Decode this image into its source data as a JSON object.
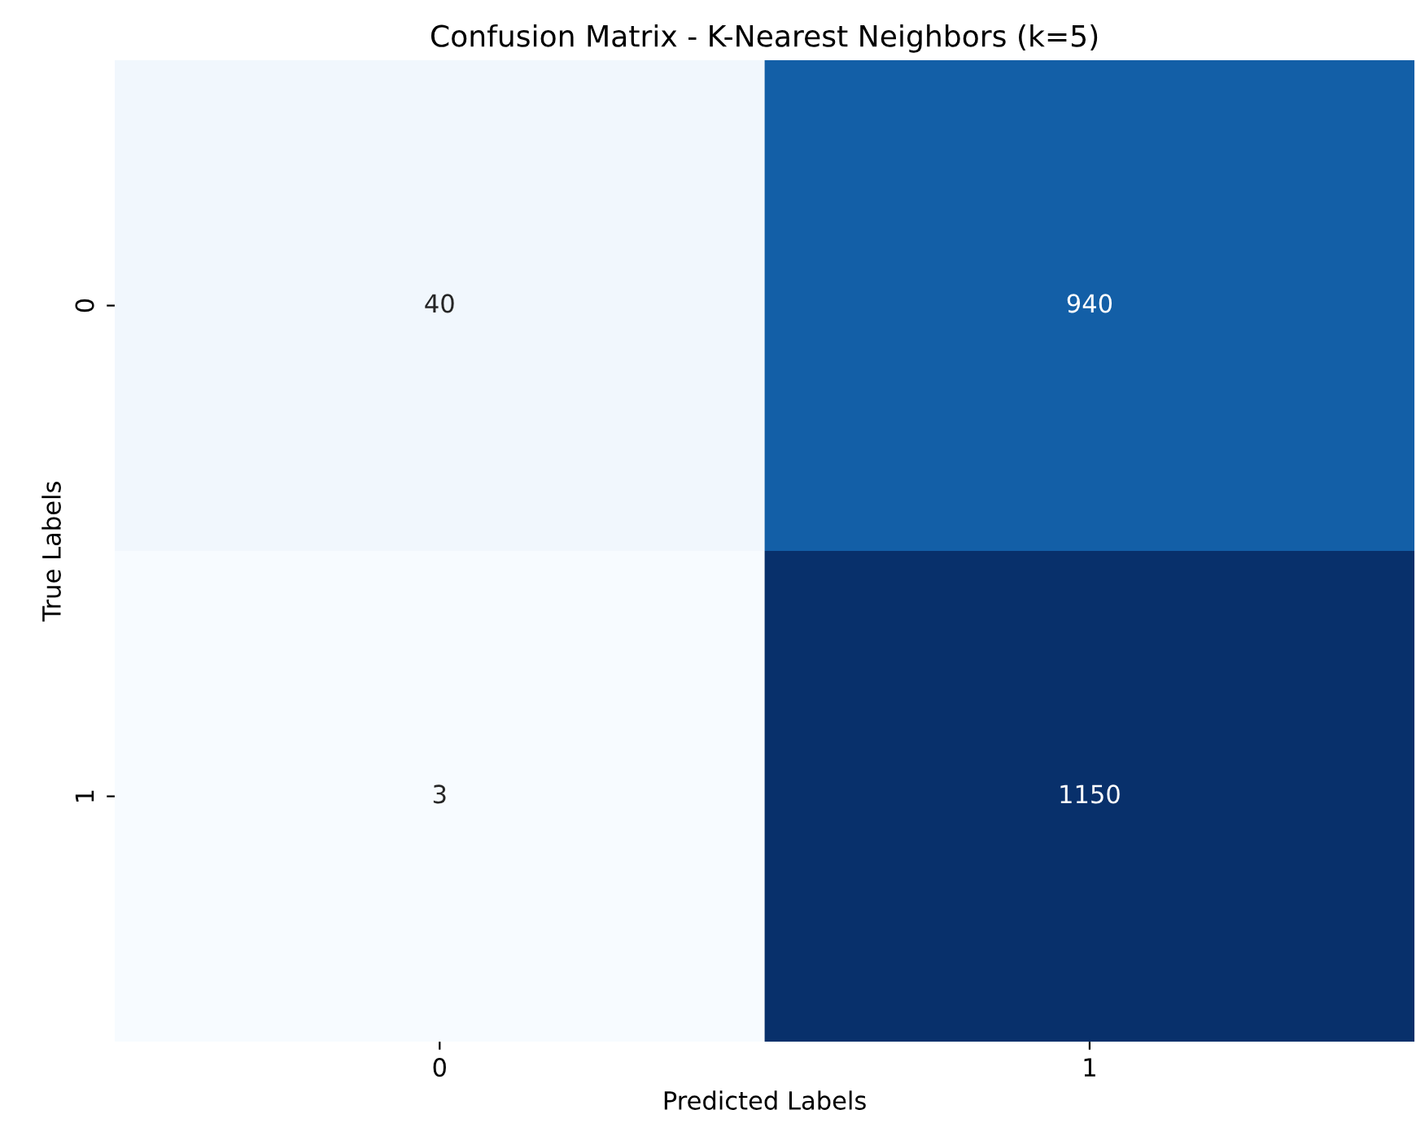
{
  "chart_data": {
    "type": "heatmap",
    "title": "Confusion Matrix - K-Nearest Neighbors (k=5)",
    "xlabel": "Predicted Labels",
    "ylabel": "True Labels",
    "categories": [
      "0",
      "1"
    ],
    "y_categories": [
      "0",
      "1"
    ],
    "cells": [
      [
        40,
        940
      ],
      [
        3,
        1150
      ]
    ],
    "data_labels": true
  }
}
